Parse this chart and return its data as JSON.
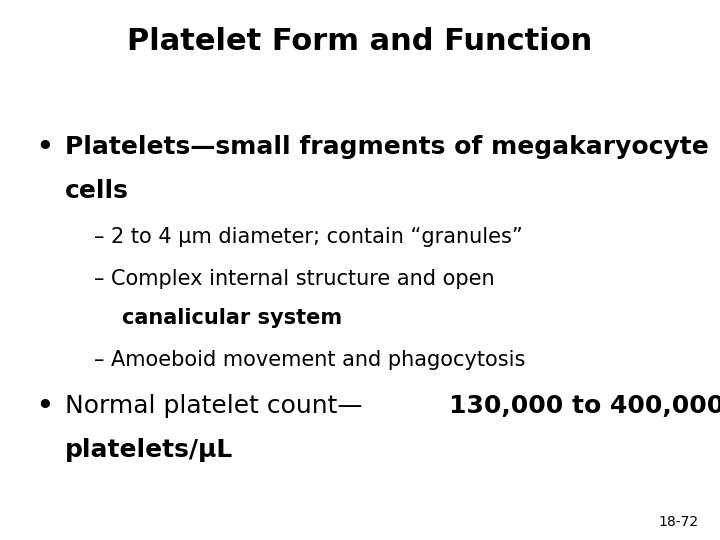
{
  "title": "Platelet Form and Function",
  "title_fontsize": 22,
  "background_color": "#ffffff",
  "text_color": "#000000",
  "slide_number": "18-72",
  "bullet1_line1": "Platelets—small fragments of megakaryocyte",
  "bullet1_line2": "cells",
  "sub1": "– 2 to 4 μm diameter; contain “granules”",
  "sub2a": "– Complex internal structure and open",
  "sub2b": "canalicular system",
  "sub3": "– Amoeboid movement and phagocytosis",
  "bullet2_line1_normal": "Normal platelet count—",
  "bullet2_line1_bold": "130,000 to 400,000",
  "bullet2_line2": "platelets/μL",
  "font_size_title": 22,
  "font_size_bullet": 18,
  "font_size_sub": 15,
  "font_size_slide_num": 10
}
